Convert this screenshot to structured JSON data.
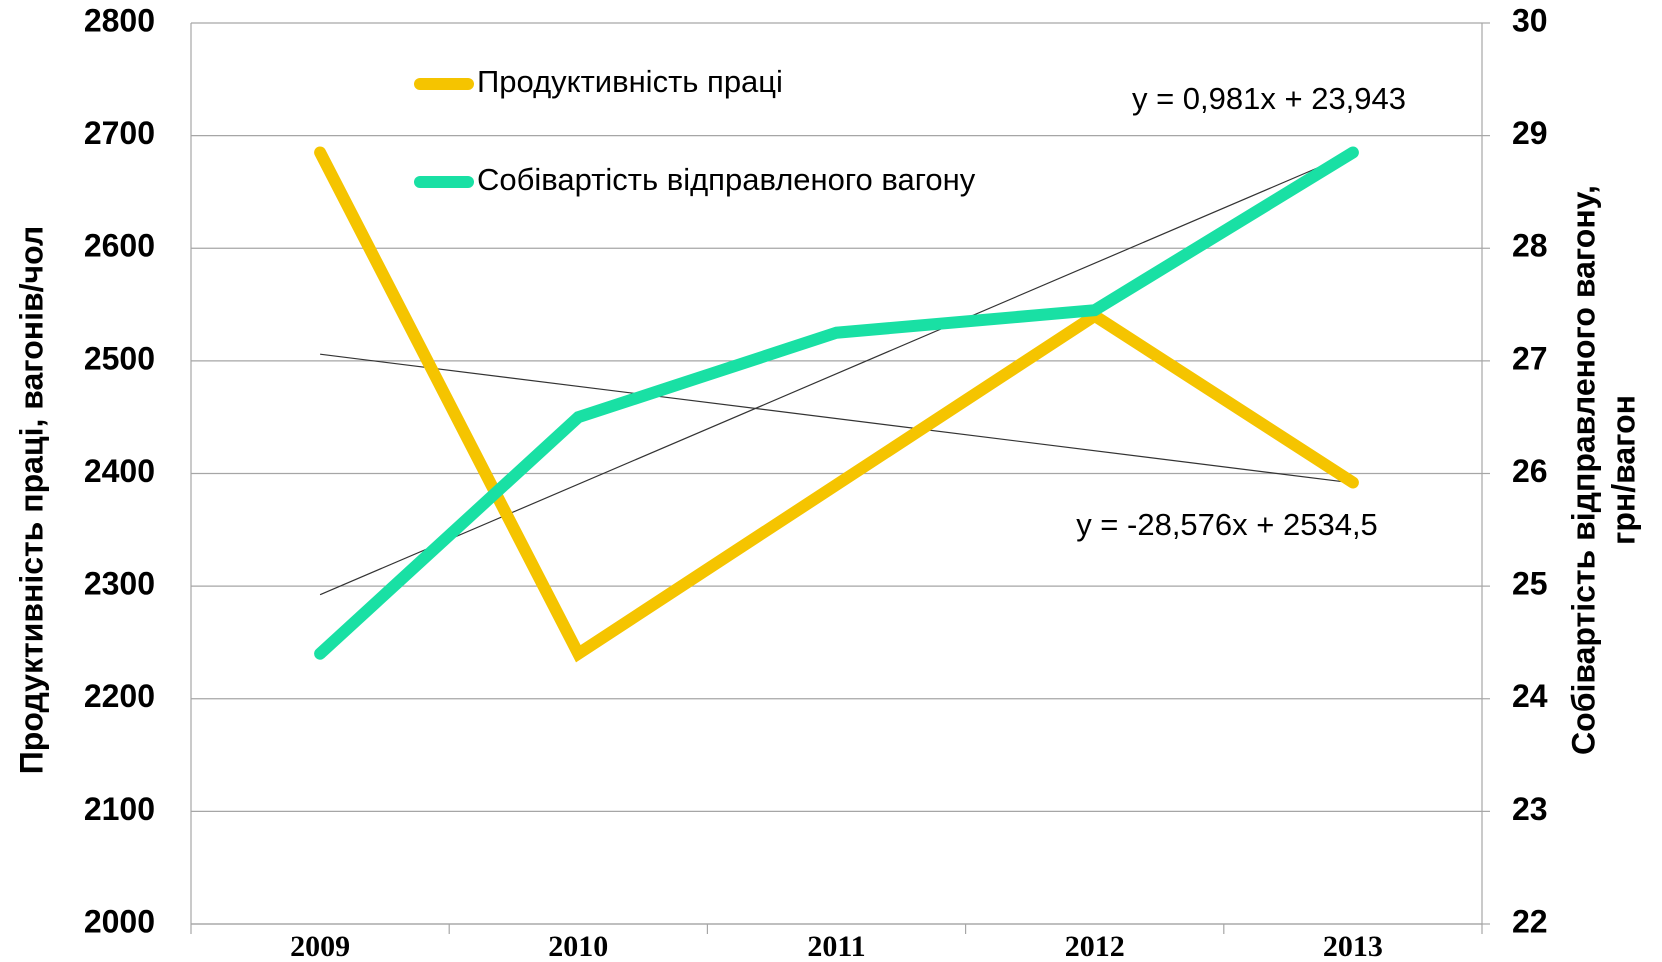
{
  "chart_data": {
    "type": "line",
    "categories": [
      "2009",
      "2010",
      "2011",
      "2012",
      "2013"
    ],
    "series": [
      {
        "name": "Продуктивність праці",
        "color": "#f5c400",
        "values": [
          2685,
          2240,
          2390,
          2540,
          2392
        ]
      },
      {
        "name": "Собівартість відправленого вагону",
        "color": "#19e0a4",
        "axis": "y2",
        "values": [
          24.4,
          26.5,
          27.25,
          27.45,
          28.85
        ]
      }
    ],
    "trendlines": [
      {
        "axis": "y",
        "slope": -28.576,
        "intercept": 2534.5,
        "label": "y = -28,576x + 2534,5"
      },
      {
        "axis": "y2",
        "slope": 0.981,
        "intercept": 23.943,
        "label": "y = 0,981x + 23,943"
      }
    ],
    "ylabel": "Продуктивність праці, вагонів/чол",
    "y2label": [
      "Собівартість відправленого вагону,",
      "грн/вагон"
    ],
    "ylim": [
      2000,
      2800
    ],
    "yticks": [
      2000,
      2100,
      2200,
      2300,
      2400,
      2500,
      2600,
      2700,
      2800
    ],
    "y2lim": [
      22,
      30
    ],
    "y2ticks": [
      22,
      23,
      24,
      25,
      26,
      27,
      28,
      29,
      30
    ],
    "grid": true
  }
}
